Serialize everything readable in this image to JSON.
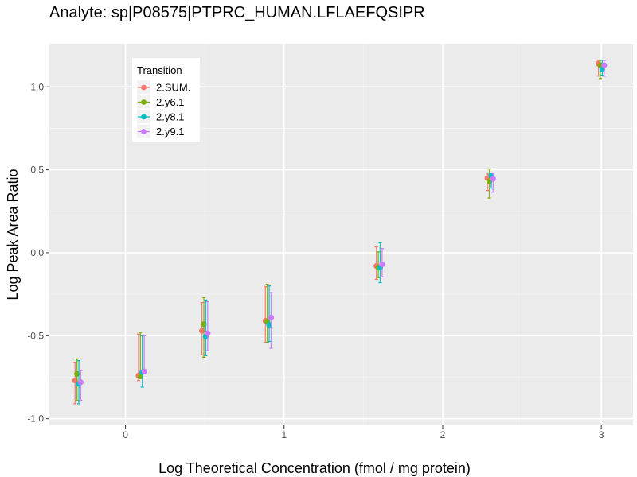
{
  "chart_data": {
    "type": "scatter",
    "title": "Analyte: sp|P08575|PTPRC_HUMAN.LFLAEFQSIPR",
    "xlabel": "Log Theoretical Concentration (fmol / mg protein)",
    "ylabel": "Log Peak Area Ratio",
    "xlim": [
      -0.48,
      3.2
    ],
    "ylim": [
      -1.04,
      1.26
    ],
    "xticks": [
      0,
      1,
      2,
      3
    ],
    "xtick_labels": [
      "0",
      "1",
      "2",
      "3"
    ],
    "yticks": [
      -1.0,
      -0.5,
      0.0,
      0.5,
      1.0
    ],
    "ytick_labels": [
      "-1.0",
      "-0.5",
      "0.0",
      "0.5",
      "1.0"
    ],
    "grid": true,
    "legend": {
      "title": "Transition",
      "placement": "top-left"
    },
    "x": [
      -0.3,
      0.1,
      0.5,
      0.9,
      1.6,
      2.3,
      3.0
    ],
    "series": [
      {
        "name": "2.SUM.",
        "color": "#F8766D",
        "y": [
          -0.77,
          -0.74,
          -0.47,
          -0.41,
          -0.08,
          0.45,
          1.14
        ],
        "ymin": [
          -0.91,
          -0.77,
          -0.615,
          -0.54,
          -0.16,
          0.375,
          1.065
        ],
        "ymax": [
          -0.66,
          -0.49,
          -0.3,
          -0.205,
          0.035,
          0.475,
          1.16
        ]
      },
      {
        "name": "2.y6.1",
        "color": "#7CAE00",
        "y": [
          -0.73,
          -0.745,
          -0.43,
          -0.415,
          -0.09,
          0.43,
          1.13
        ],
        "ymin": [
          -0.89,
          -0.755,
          -0.63,
          -0.54,
          -0.15,
          0.33,
          1.05
        ],
        "ymax": [
          -0.64,
          -0.48,
          -0.27,
          -0.19,
          0.005,
          0.505,
          1.16
        ]
      },
      {
        "name": "2.y8.1",
        "color": "#00BFC4",
        "y": [
          -0.79,
          -0.72,
          -0.505,
          -0.435,
          -0.09,
          0.465,
          1.105
        ],
        "ymin": [
          -0.91,
          -0.81,
          -0.62,
          -0.535,
          -0.18,
          0.39,
          1.07
        ],
        "ymax": [
          -0.65,
          -0.5,
          -0.285,
          -0.2,
          0.06,
          0.48,
          1.16
        ]
      },
      {
        "name": "2.y9.1",
        "color": "#C77CFF",
        "y": [
          -0.78,
          -0.715,
          -0.485,
          -0.39,
          -0.07,
          0.445,
          1.13
        ],
        "ymin": [
          -0.89,
          -0.73,
          -0.59,
          -0.575,
          -0.145,
          0.365,
          1.065
        ],
        "ymax": [
          -0.71,
          -0.5,
          -0.295,
          -0.24,
          0.025,
          0.48,
          1.16
        ]
      }
    ]
  }
}
